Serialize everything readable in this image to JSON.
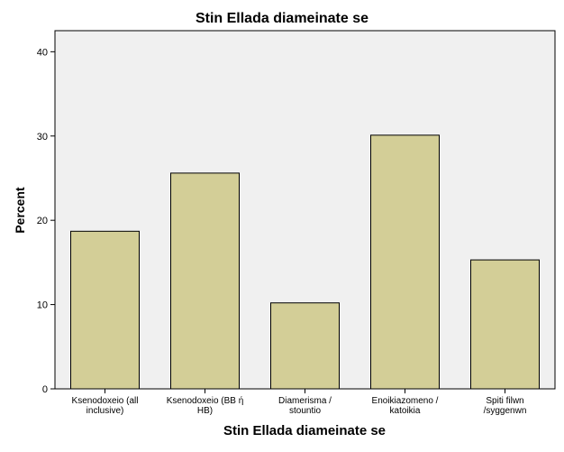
{
  "chart_data": {
    "type": "bar",
    "title": "Stin Ellada diameinate se",
    "xlabel": "Stin Ellada diameinate se",
    "ylabel": "Percent",
    "categories": [
      [
        "Ksenodoxeio (all",
        "inclusive)"
      ],
      [
        "Ksenodoxeio (BB ή",
        "HB)"
      ],
      [
        "Diamerisma /",
        "stountio"
      ],
      [
        "Enoikiazomeno /",
        "katoikia"
      ],
      [
        "Spiti filwn",
        "/syggenwn"
      ]
    ],
    "values": [
      18.7,
      25.6,
      10.2,
      30.1,
      15.3
    ],
    "ylim": [
      0,
      42.5
    ],
    "yticks": [
      0,
      10,
      20,
      30,
      40
    ],
    "grid": false,
    "colors": {
      "bar_fill": "#d3ce97",
      "bar_stroke": "#000000",
      "plot_background": "#f0f0f0"
    }
  }
}
